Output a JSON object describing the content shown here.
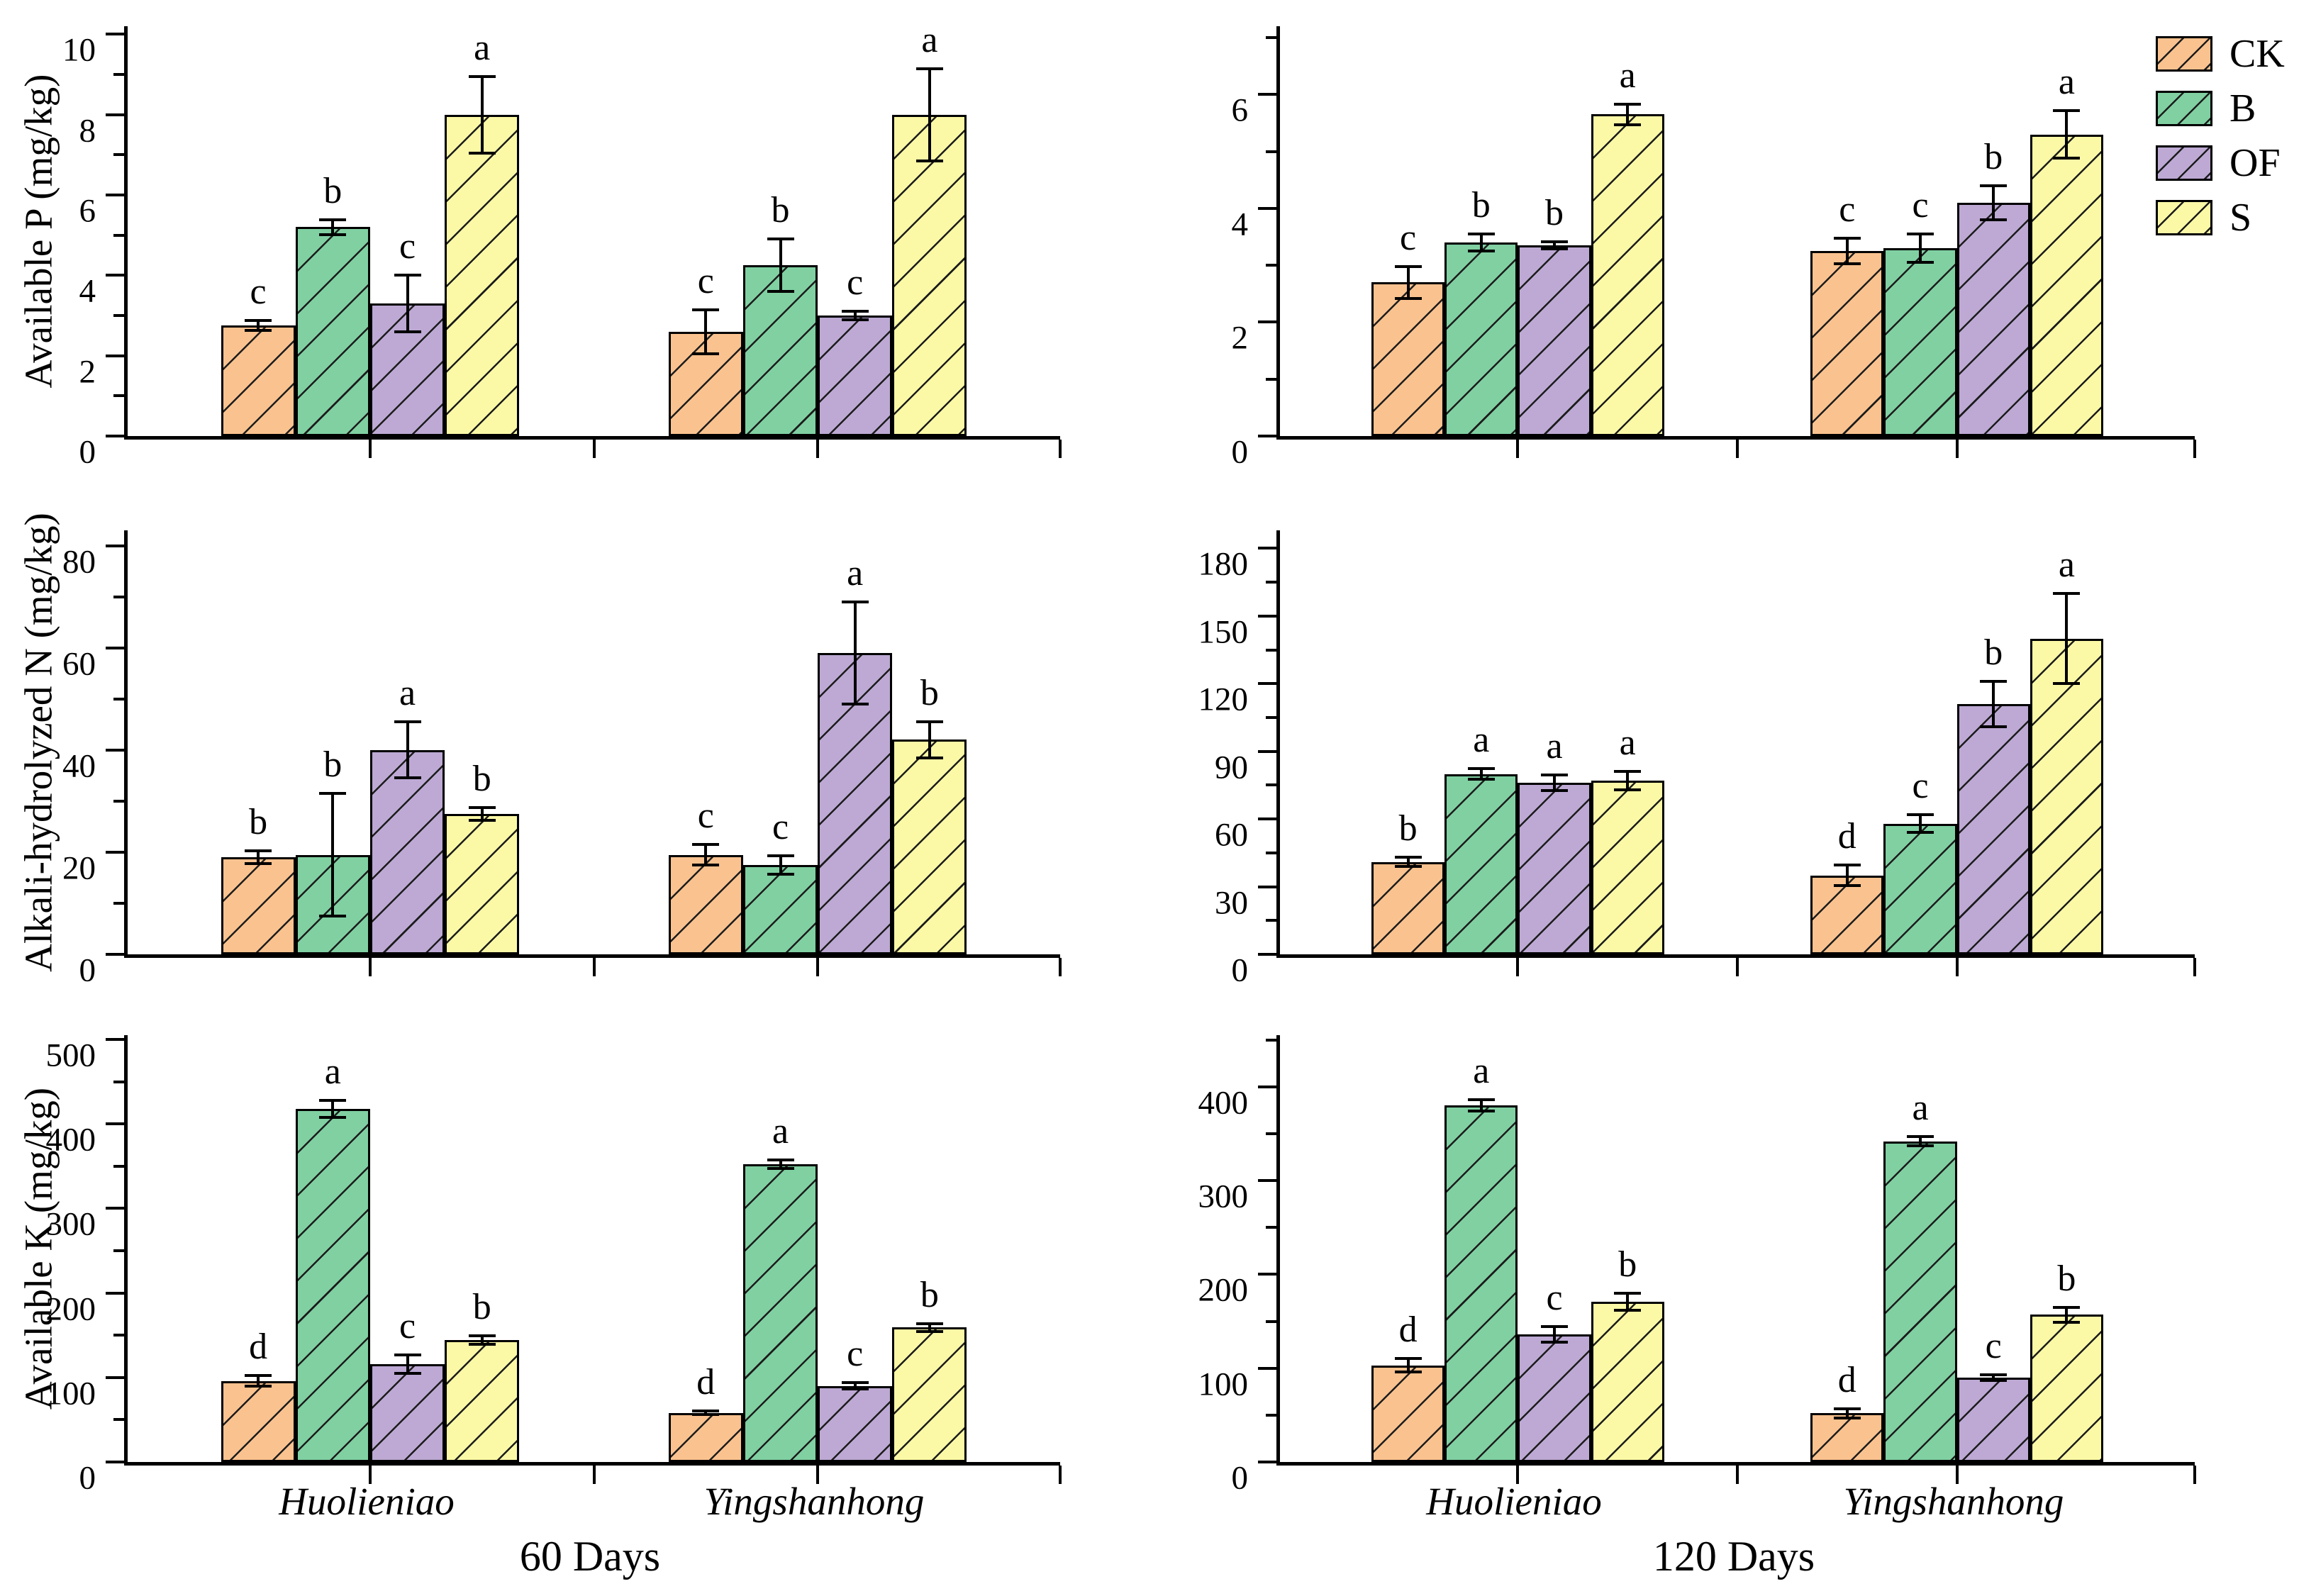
{
  "figure": {
    "columns": [
      {
        "day_label": "60 Days",
        "cultivars": [
          "Huolieniao",
          "Yingshanhong"
        ]
      },
      {
        "day_label": "120 Days",
        "cultivars": [
          "Huolieniao",
          "Yingshanhong"
        ]
      }
    ],
    "legend": {
      "items": [
        {
          "label": "CK",
          "color": "#FAC28F"
        },
        {
          "label": "B",
          "color": "#80D0A2"
        },
        {
          "label": "OF",
          "color": "#BDA9D4"
        },
        {
          "label": "S",
          "color": "#FBF9A6"
        }
      ]
    }
  },
  "chart_data": [
    {
      "type": "bar",
      "panel": "Available P - 60 Days",
      "ylabel": "Available P (mg/kg)",
      "ylim": [
        0,
        10.2
      ],
      "ymajor": [
        0,
        2,
        4,
        6,
        8,
        10
      ],
      "yminor": [
        1,
        3,
        5,
        7,
        9
      ],
      "categories": [
        "Huolieniao",
        "Yingshanhong"
      ],
      "series": [
        {
          "name": "CK",
          "color": "#FAC28F",
          "values": [
            2.75,
            2.6
          ],
          "errors": [
            0.12,
            0.55
          ],
          "letters": [
            "c",
            "c"
          ]
        },
        {
          "name": "B",
          "color": "#80D0A2",
          "values": [
            5.2,
            4.25
          ],
          "errors": [
            0.18,
            0.65
          ],
          "letters": [
            "b",
            "b"
          ]
        },
        {
          "name": "OF",
          "color": "#BDA9D4",
          "values": [
            3.3,
            3.0
          ],
          "errors": [
            0.7,
            0.1
          ],
          "letters": [
            "c",
            "c"
          ]
        },
        {
          "name": "S",
          "color": "#FBF9A6",
          "values": [
            8.0,
            8.0
          ],
          "errors": [
            0.95,
            1.15
          ],
          "letters": [
            "a",
            "a"
          ]
        }
      ]
    },
    {
      "type": "bar",
      "panel": "Available P - 120 Days",
      "ylabel": "",
      "ylim": [
        0,
        7.2
      ],
      "ymajor": [
        0,
        2,
        4,
        6
      ],
      "yminor": [
        1,
        3,
        5,
        7
      ],
      "categories": [
        "Huolieniao",
        "Yingshanhong"
      ],
      "series": [
        {
          "name": "CK",
          "color": "#FAC28F",
          "values": [
            2.7,
            3.25
          ],
          "errors": [
            0.28,
            0.22
          ],
          "letters": [
            "c",
            "c"
          ]
        },
        {
          "name": "B",
          "color": "#80D0A2",
          "values": [
            3.4,
            3.3
          ],
          "errors": [
            0.15,
            0.25
          ],
          "letters": [
            "b",
            "c"
          ]
        },
        {
          "name": "OF",
          "color": "#BDA9D4",
          "values": [
            3.35,
            4.1
          ],
          "errors": [
            0.06,
            0.3
          ],
          "letters": [
            "b",
            "b"
          ]
        },
        {
          "name": "S",
          "color": "#FBF9A6",
          "values": [
            5.65,
            5.3
          ],
          "errors": [
            0.18,
            0.42
          ],
          "letters": [
            "a",
            "a"
          ]
        }
      ]
    },
    {
      "type": "bar",
      "panel": "Alkali-hydrolyzed N - 60 Days",
      "ylabel": "Alkali-hydrolyzed N (mg/kg)",
      "ylim": [
        0,
        83
      ],
      "ymajor": [
        0,
        20,
        40,
        60,
        80
      ],
      "yminor": [
        10,
        30,
        50,
        70
      ],
      "categories": [
        "Huolieniao",
        "Yingshanhong"
      ],
      "series": [
        {
          "name": "CK",
          "color": "#FAC28F",
          "values": [
            19,
            19.5
          ],
          "errors": [
            1.2,
            2
          ],
          "letters": [
            "b",
            "c"
          ]
        },
        {
          "name": "B",
          "color": "#80D0A2",
          "values": [
            19.5,
            17.5
          ],
          "errors": [
            12,
            1.8
          ],
          "letters": [
            "b",
            "c"
          ]
        },
        {
          "name": "OF",
          "color": "#BDA9D4",
          "values": [
            40,
            59
          ],
          "errors": [
            5.5,
            10
          ],
          "letters": [
            "a",
            "a"
          ]
        },
        {
          "name": "S",
          "color": "#FBF9A6",
          "values": [
            27.5,
            42
          ],
          "errors": [
            1.2,
            3.5
          ],
          "letters": [
            "b",
            "b"
          ]
        }
      ]
    },
    {
      "type": "bar",
      "panel": "Alkali-hydrolyzed N - 120 Days",
      "ylabel": "",
      "ylim": [
        0,
        188
      ],
      "ymajor": [
        0,
        30,
        60,
        90,
        120,
        150,
        180
      ],
      "yminor": [
        15,
        45,
        75,
        105,
        135,
        165
      ],
      "categories": [
        "Huolieniao",
        "Yingshanhong"
      ],
      "series": [
        {
          "name": "CK",
          "color": "#FAC28F",
          "values": [
            41,
            35
          ],
          "errors": [
            2,
            4.5
          ],
          "letters": [
            "b",
            "d"
          ]
        },
        {
          "name": "B",
          "color": "#80D0A2",
          "values": [
            80,
            58
          ],
          "errors": [
            2.5,
            4
          ],
          "letters": [
            "a",
            "c"
          ]
        },
        {
          "name": "OF",
          "color": "#BDA9D4",
          "values": [
            76,
            111
          ],
          "errors": [
            3.5,
            10
          ],
          "letters": [
            "a",
            "b"
          ]
        },
        {
          "name": "S",
          "color": "#FBF9A6",
          "values": [
            77,
            140
          ],
          "errors": [
            4,
            20
          ],
          "letters": [
            "a",
            "a"
          ]
        }
      ]
    },
    {
      "type": "bar",
      "panel": "Available K - 60 Days",
      "ylabel": "Available K (mg/kg)",
      "ylim": [
        0,
        505
      ],
      "ymajor": [
        0,
        100,
        200,
        300,
        400,
        500
      ],
      "yminor": [
        50,
        150,
        250,
        350,
        450
      ],
      "categories": [
        "Huolieniao",
        "Yingshanhong"
      ],
      "series": [
        {
          "name": "CK",
          "color": "#FAC28F",
          "values": [
            96,
            58
          ],
          "errors": [
            6,
            2
          ],
          "letters": [
            "d",
            "d"
          ]
        },
        {
          "name": "B",
          "color": "#80D0A2",
          "values": [
            418,
            352
          ],
          "errors": [
            10,
            5
          ],
          "letters": [
            "a",
            "a"
          ]
        },
        {
          "name": "OF",
          "color": "#BDA9D4",
          "values": [
            116,
            90
          ],
          "errors": [
            11,
            4
          ],
          "letters": [
            "c",
            "c"
          ]
        },
        {
          "name": "S",
          "color": "#FBF9A6",
          "values": [
            144,
            159
          ],
          "errors": [
            5,
            5
          ],
          "letters": [
            "b",
            "b"
          ]
        }
      ]
    },
    {
      "type": "bar",
      "panel": "Available K - 120 Days",
      "ylabel": "",
      "ylim": [
        0,
        455
      ],
      "ymajor": [
        0,
        100,
        200,
        300,
        400
      ],
      "yminor": [
        50,
        150,
        250,
        350,
        450
      ],
      "categories": [
        "Huolieniao",
        "Yingshanhong"
      ],
      "series": [
        {
          "name": "CK",
          "color": "#FAC28F",
          "values": [
            103,
            52
          ],
          "errors": [
            7,
            5
          ],
          "letters": [
            "d",
            "d"
          ]
        },
        {
          "name": "B",
          "color": "#80D0A2",
          "values": [
            380,
            342
          ],
          "errors": [
            6,
            5
          ],
          "letters": [
            "a",
            "a"
          ]
        },
        {
          "name": "OF",
          "color": "#BDA9D4",
          "values": [
            136,
            90
          ],
          "errors": [
            8,
            3
          ],
          "letters": [
            "c",
            "c"
          ]
        },
        {
          "name": "S",
          "color": "#FBF9A6",
          "values": [
            171,
            157
          ],
          "errors": [
            9,
            8
          ],
          "letters": [
            "b",
            "b"
          ]
        }
      ]
    }
  ]
}
